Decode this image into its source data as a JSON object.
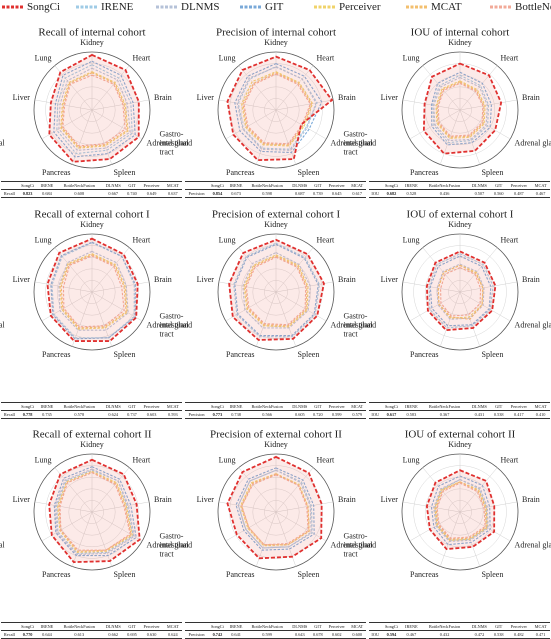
{
  "chart_data": {
    "type": "radar",
    "rlim": [
      0,
      1
    ],
    "axes": [
      "Kidney",
      "Heart",
      "Brain",
      "Adrenal gland",
      "Spleen",
      "Pancreas",
      "Gastro-intestinal tract",
      "Liver",
      "Lung"
    ],
    "series": [
      {
        "name": "SongCi",
        "color": "#e0302f"
      },
      {
        "name": "IRENE",
        "color": "#9fcbe6"
      },
      {
        "name": "DLNMS",
        "color": "#b5c2d8"
      },
      {
        "name": "GIT",
        "color": "#7aa9d8"
      },
      {
        "name": "Perceiver",
        "color": "#f0d36a"
      },
      {
        "name": "MCAT",
        "color": "#f3bf6e"
      },
      {
        "name": "BottleNeckFusion",
        "color": "#f2aa98"
      }
    ],
    "panels": [
      {
        "title": "Recall of internal cohort",
        "values": [
          [
            0.95,
            0.9,
            0.82,
            0.93,
            0.9,
            0.95,
            0.85,
            0.72,
            0.85
          ],
          [
            0.78,
            0.72,
            0.68,
            0.8,
            0.74,
            0.8,
            0.7,
            0.6,
            0.72
          ],
          [
            0.72,
            0.68,
            0.62,
            0.76,
            0.7,
            0.74,
            0.66,
            0.56,
            0.66
          ],
          [
            0.84,
            0.78,
            0.72,
            0.86,
            0.8,
            0.86,
            0.76,
            0.64,
            0.78
          ],
          [
            0.66,
            0.62,
            0.58,
            0.72,
            0.66,
            0.7,
            0.62,
            0.52,
            0.62
          ],
          [
            0.64,
            0.6,
            0.56,
            0.7,
            0.64,
            0.68,
            0.6,
            0.5,
            0.6
          ],
          [
            0.6,
            0.58,
            0.54,
            0.66,
            0.62,
            0.66,
            0.58,
            0.48,
            0.58
          ]
        ]
      },
      {
        "title": "Precision of internal cohort",
        "values": [
          [
            0.92,
            0.9,
            0.98,
            0.5,
            0.9,
            0.92,
            0.85,
            0.85,
            0.9
          ],
          [
            0.75,
            0.7,
            0.72,
            0.6,
            0.72,
            0.7,
            0.65,
            0.66,
            0.7
          ],
          [
            0.74,
            0.7,
            0.7,
            0.62,
            0.74,
            0.72,
            0.66,
            0.68,
            0.72
          ],
          [
            0.8,
            0.76,
            0.8,
            0.66,
            0.78,
            0.76,
            0.72,
            0.72,
            0.76
          ],
          [
            0.66,
            0.62,
            0.64,
            0.56,
            0.66,
            0.64,
            0.6,
            0.6,
            0.64
          ],
          [
            0.64,
            0.6,
            0.62,
            0.54,
            0.64,
            0.62,
            0.58,
            0.58,
            0.6
          ],
          [
            0.62,
            0.58,
            0.6,
            0.52,
            0.62,
            0.6,
            0.56,
            0.56,
            0.58
          ]
        ]
      },
      {
        "title": "IOU of internal cohort",
        "values": [
          [
            0.8,
            0.78,
            0.72,
            0.7,
            0.75,
            0.8,
            0.72,
            0.62,
            0.75
          ],
          [
            0.6,
            0.55,
            0.5,
            0.55,
            0.56,
            0.6,
            0.52,
            0.48,
            0.55
          ],
          [
            0.56,
            0.52,
            0.48,
            0.52,
            0.54,
            0.56,
            0.5,
            0.46,
            0.52
          ],
          [
            0.65,
            0.6,
            0.55,
            0.6,
            0.6,
            0.64,
            0.56,
            0.5,
            0.6
          ],
          [
            0.5,
            0.46,
            0.44,
            0.48,
            0.5,
            0.52,
            0.46,
            0.42,
            0.48
          ],
          [
            0.48,
            0.44,
            0.42,
            0.46,
            0.48,
            0.5,
            0.44,
            0.4,
            0.46
          ],
          [
            0.46,
            0.42,
            0.4,
            0.44,
            0.46,
            0.48,
            0.42,
            0.38,
            0.44
          ]
        ]
      },
      {
        "title": "Recall of external cohort I",
        "values": [
          [
            0.92,
            0.85,
            0.8,
            0.88,
            0.9,
            0.9,
            0.82,
            0.78,
            0.88
          ],
          [
            0.85,
            0.8,
            0.74,
            0.84,
            0.84,
            0.84,
            0.76,
            0.7,
            0.8
          ],
          [
            0.7,
            0.66,
            0.6,
            0.72,
            0.7,
            0.7,
            0.64,
            0.58,
            0.66
          ],
          [
            0.86,
            0.8,
            0.76,
            0.86,
            0.84,
            0.86,
            0.78,
            0.72,
            0.82
          ],
          [
            0.66,
            0.62,
            0.58,
            0.7,
            0.66,
            0.68,
            0.6,
            0.56,
            0.64
          ],
          [
            0.64,
            0.6,
            0.56,
            0.68,
            0.64,
            0.66,
            0.58,
            0.54,
            0.62
          ],
          [
            0.62,
            0.58,
            0.52,
            0.64,
            0.62,
            0.64,
            0.56,
            0.5,
            0.6
          ]
        ]
      },
      {
        "title": "Precision of external cohort I",
        "values": [
          [
            0.9,
            0.85,
            0.84,
            0.82,
            0.86,
            0.88,
            0.86,
            0.82,
            0.88
          ],
          [
            0.84,
            0.78,
            0.76,
            0.78,
            0.82,
            0.82,
            0.78,
            0.74,
            0.8
          ],
          [
            0.68,
            0.62,
            0.6,
            0.64,
            0.66,
            0.66,
            0.62,
            0.58,
            0.64
          ],
          [
            0.82,
            0.76,
            0.74,
            0.76,
            0.8,
            0.8,
            0.76,
            0.72,
            0.78
          ],
          [
            0.64,
            0.6,
            0.56,
            0.62,
            0.64,
            0.62,
            0.58,
            0.56,
            0.6
          ],
          [
            0.62,
            0.58,
            0.54,
            0.6,
            0.62,
            0.6,
            0.56,
            0.54,
            0.58
          ],
          [
            0.6,
            0.56,
            0.52,
            0.58,
            0.6,
            0.58,
            0.54,
            0.52,
            0.56
          ]
        ]
      },
      {
        "title": "IOU of external cohort I",
        "values": [
          [
            0.7,
            0.66,
            0.62,
            0.64,
            0.66,
            0.7,
            0.64,
            0.58,
            0.66
          ],
          [
            0.66,
            0.62,
            0.58,
            0.6,
            0.62,
            0.66,
            0.6,
            0.54,
            0.62
          ],
          [
            0.48,
            0.46,
            0.42,
            0.46,
            0.48,
            0.5,
            0.44,
            0.4,
            0.46
          ],
          [
            0.62,
            0.58,
            0.54,
            0.58,
            0.6,
            0.62,
            0.56,
            0.52,
            0.58
          ],
          [
            0.46,
            0.44,
            0.4,
            0.44,
            0.46,
            0.48,
            0.42,
            0.38,
            0.44
          ],
          [
            0.46,
            0.42,
            0.4,
            0.44,
            0.5,
            0.46,
            0.42,
            0.38,
            0.44
          ],
          [
            0.42,
            0.4,
            0.36,
            0.4,
            0.42,
            0.44,
            0.38,
            0.34,
            0.4
          ]
        ]
      },
      {
        "title": "Recall of external cohort II",
        "values": [
          [
            0.9,
            0.85,
            0.78,
            0.95,
            0.9,
            0.92,
            0.8,
            0.75,
            0.85
          ],
          [
            0.72,
            0.7,
            0.62,
            0.82,
            0.74,
            0.76,
            0.68,
            0.62,
            0.7
          ],
          [
            0.74,
            0.7,
            0.64,
            0.84,
            0.76,
            0.78,
            0.7,
            0.64,
            0.72
          ],
          [
            0.78,
            0.74,
            0.68,
            0.88,
            0.8,
            0.8,
            0.72,
            0.66,
            0.76
          ],
          [
            0.7,
            0.66,
            0.6,
            0.8,
            0.72,
            0.74,
            0.64,
            0.6,
            0.68
          ],
          [
            0.68,
            0.64,
            0.58,
            0.78,
            0.7,
            0.72,
            0.62,
            0.58,
            0.66
          ],
          [
            0.68,
            0.62,
            0.56,
            0.76,
            0.7,
            0.7,
            0.62,
            0.56,
            0.66
          ]
        ]
      },
      {
        "title": "Precision of external cohort II",
        "values": [
          [
            0.95,
            0.88,
            0.8,
            0.9,
            0.82,
            0.85,
            0.78,
            0.85,
            0.9
          ],
          [
            0.72,
            0.68,
            0.62,
            0.72,
            0.64,
            0.66,
            0.6,
            0.66,
            0.7
          ],
          [
            0.72,
            0.66,
            0.6,
            0.7,
            0.64,
            0.66,
            0.6,
            0.66,
            0.7
          ],
          [
            0.76,
            0.72,
            0.66,
            0.76,
            0.68,
            0.7,
            0.64,
            0.7,
            0.74
          ],
          [
            0.66,
            0.62,
            0.56,
            0.66,
            0.6,
            0.62,
            0.56,
            0.62,
            0.66
          ],
          [
            0.66,
            0.6,
            0.56,
            0.66,
            0.6,
            0.6,
            0.54,
            0.6,
            0.64
          ],
          [
            0.64,
            0.6,
            0.54,
            0.64,
            0.58,
            0.6,
            0.54,
            0.6,
            0.62
          ]
        ]
      },
      {
        "title": "IOU of external cohort II",
        "values": [
          [
            0.72,
            0.7,
            0.6,
            0.68,
            0.64,
            0.68,
            0.6,
            0.58,
            0.66
          ],
          [
            0.56,
            0.52,
            0.46,
            0.54,
            0.5,
            0.52,
            0.46,
            0.44,
            0.5
          ],
          [
            0.56,
            0.54,
            0.48,
            0.56,
            0.52,
            0.54,
            0.48,
            0.46,
            0.52
          ],
          [
            0.62,
            0.6,
            0.52,
            0.6,
            0.56,
            0.6,
            0.52,
            0.5,
            0.58
          ],
          [
            0.52,
            0.5,
            0.46,
            0.54,
            0.5,
            0.52,
            0.46,
            0.44,
            0.5
          ],
          [
            0.52,
            0.48,
            0.44,
            0.52,
            0.48,
            0.5,
            0.44,
            0.42,
            0.48
          ],
          [
            0.5,
            0.46,
            0.42,
            0.5,
            0.46,
            0.48,
            0.42,
            0.4,
            0.46
          ]
        ]
      }
    ]
  },
  "tables": [
    {
      "header": [
        "SongCi",
        "IRENE",
        "BottleNeckFusion",
        "DLNMS",
        "GIT",
        "Perceiver",
        "MCAT"
      ],
      "metric": "Recall",
      "values": [
        "0.823",
        "0.684",
        "0.608",
        "0.667",
        "0.740",
        "0.649",
        "0.637"
      ]
    },
    {
      "header": [
        "SongCi",
        "IRENE",
        "BottleNeckFusion",
        "DLNMS",
        "GIT",
        "Perceiver",
        "MCAT"
      ],
      "metric": "Precision",
      "values": [
        "0.854",
        "0.673",
        "0.598",
        "0.687",
        "0.739",
        "0.645",
        "0.617"
      ]
    },
    {
      "header": [
        "SongCi",
        "IRENE",
        "BottleNeckFusion",
        "DLNMS",
        "GIT",
        "Perceiver",
        "MCAT"
      ],
      "metric": "IOU",
      "values": [
        "0.682",
        "0.528",
        "0.436",
        "0.507",
        "0.560",
        "0.487",
        "0.467"
      ]
    },
    {
      "header": [
        "SongCi",
        "IRENE",
        "BottleNeckFusion",
        "DLNMS",
        "GIT",
        "Perceiver",
        "MCAT"
      ],
      "metric": "Recall",
      "values": [
        "0.778",
        "0.735",
        "0.578",
        "0.624",
        "0.737",
        "0.603",
        "0.593"
      ]
    },
    {
      "header": [
        "SongCi",
        "IRENE",
        "BottleNeckFusion",
        "DLNMS",
        "GIT",
        "Perceiver",
        "MCAT"
      ],
      "metric": "Precision",
      "values": [
        "0.773",
        "0.738",
        "0.566",
        "0.605",
        "0.720",
        "0.599",
        "0.579"
      ]
    },
    {
      "header": [
        "SongCi",
        "IRENE",
        "BottleNeckFusion",
        "DLNMS",
        "GIT",
        "Perceiver",
        "MCAT"
      ],
      "metric": "IOU",
      "values": [
        "0.617",
        "0.583",
        "0.367",
        "0.431",
        "0.538",
        "0.417",
        "0.410"
      ]
    },
    {
      "header": [
        "SongCi",
        "IRENE",
        "BottleNeckFusion",
        "DLNMS",
        "GIT",
        "Perceiver",
        "MCAT"
      ],
      "metric": "Recall",
      "values": [
        "0.770",
        "0.644",
        "0.613",
        "0.662",
        "0.695",
        "0.630",
        "0.624"
      ]
    },
    {
      "header": [
        "SongCi",
        "IRENE",
        "BottleNeckFusion",
        "DLNMS",
        "GIT",
        "Perceiver",
        "MCAT"
      ],
      "metric": "Precision",
      "values": [
        "0.742",
        "0.641",
        "0.599",
        "0.643",
        "0.678",
        "0.602",
        "0.600"
      ]
    },
    {
      "header": [
        "SongCi",
        "IRENE",
        "BottleNeckFusion",
        "DLNMS",
        "GIT",
        "Perceiver",
        "MCAT"
      ],
      "metric": "IOU",
      "values": [
        "0.594",
        "0.467",
        "0.432",
        "0.472",
        "0.538",
        "0.482",
        "0.471"
      ]
    }
  ]
}
